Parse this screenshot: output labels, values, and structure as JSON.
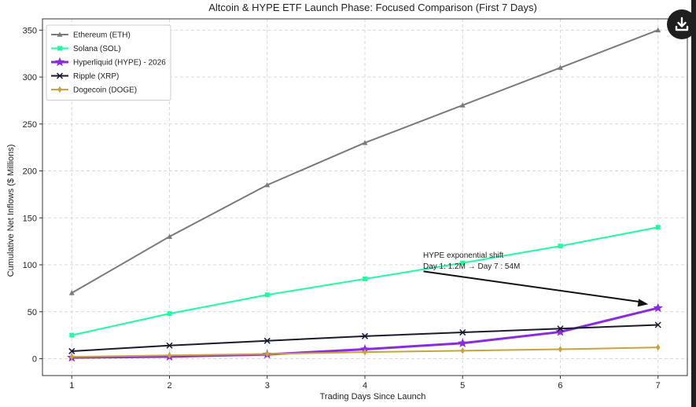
{
  "download_icon": "download-icon",
  "chart_data": {
    "type": "line",
    "title": "Altcoin & HYPE ETF Launch Phase: Focused Comparison (First 7 Days)",
    "xlabel": "Trading Days Since Launch",
    "ylabel": "Cumulative Net Inflows ($ Millions)",
    "x": [
      1,
      2,
      3,
      4,
      5,
      6,
      7
    ],
    "xlim": [
      0.7,
      7.3
    ],
    "ylim": [
      -18,
      362
    ],
    "xticks": [
      "1",
      "2",
      "3",
      "4",
      "5",
      "6",
      "7"
    ],
    "yticks": [
      0,
      50,
      100,
      150,
      200,
      250,
      300,
      350
    ],
    "grid": true,
    "legend_position": "upper-left",
    "series": [
      {
        "name": "Ethereum (ETH)",
        "color": "#7a7a7a",
        "marker": "triangle",
        "values": [
          70,
          130,
          185,
          230,
          270,
          310,
          350
        ]
      },
      {
        "name": "Solana (SOL)",
        "color": "#1dfca0",
        "marker": "square",
        "values": [
          25,
          48,
          68,
          85,
          102,
          120,
          140
        ]
      },
      {
        "name": "Hyperliquid (HYPE) - 2026",
        "color": "#8a2be2",
        "marker": "star",
        "values": [
          1.2,
          2.2,
          4.5,
          10,
          16.5,
          28.5,
          54
        ]
      },
      {
        "name": "Ripple (XRP)",
        "color": "#1a1a2e",
        "marker": "x",
        "values": [
          8,
          14,
          19,
          24,
          28,
          32,
          36
        ]
      },
      {
        "name": "Dogecoin (DOGE)",
        "color": "#c8a43a",
        "marker": "diamond",
        "values": [
          2,
          3.5,
          5,
          7,
          8.5,
          10,
          12
        ]
      }
    ],
    "annotation": {
      "line1": "HYPE exponential shift",
      "line2": "Day 1: 1.2M → Day 7 : 54M",
      "arrow_from": [
        4.6,
        93
      ],
      "arrow_to": [
        6.9,
        58
      ]
    }
  }
}
